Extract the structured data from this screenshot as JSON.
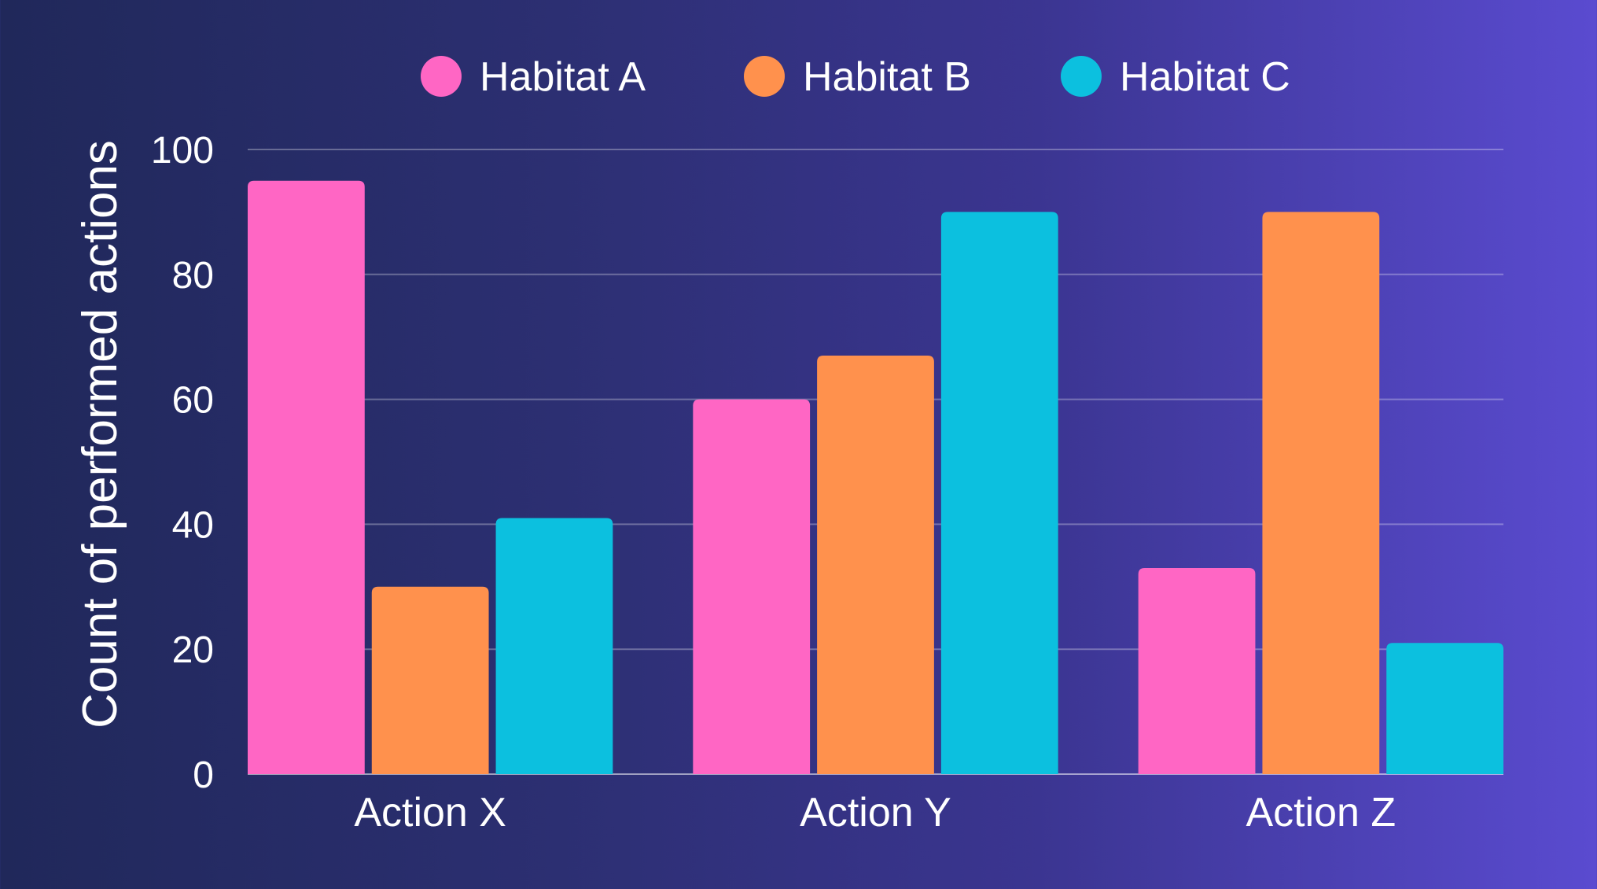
{
  "chart_data": {
    "type": "bar",
    "categories": [
      "Action X",
      "Action Y",
      "Action Z"
    ],
    "series": [
      {
        "name": "Habitat A",
        "values": [
          95,
          60,
          33
        ],
        "color": "#ff66c4"
      },
      {
        "name": "Habitat B",
        "values": [
          30,
          67,
          90
        ],
        "color": "#ff914d"
      },
      {
        "name": "Habitat C",
        "values": [
          41,
          90,
          21
        ],
        "color": "#0cc0df"
      }
    ],
    "title": "",
    "xlabel": "",
    "ylabel": "Count of performed actions",
    "ylim": [
      0,
      100
    ],
    "yticks": [
      0,
      20,
      40,
      60,
      80,
      100
    ],
    "grid": true,
    "legend_position": "top"
  }
}
